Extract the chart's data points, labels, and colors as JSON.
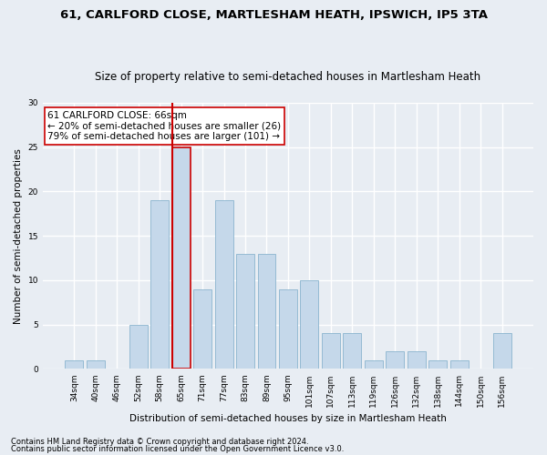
{
  "title": "61, CARLFORD CLOSE, MARTLESHAM HEATH, IPSWICH, IP5 3TA",
  "subtitle": "Size of property relative to semi-detached houses in Martlesham Heath",
  "xlabel": "Distribution of semi-detached houses by size in Martlesham Heath",
  "ylabel": "Number of semi-detached properties",
  "footnote1": "Contains HM Land Registry data © Crown copyright and database right 2024.",
  "footnote2": "Contains public sector information licensed under the Open Government Licence v3.0.",
  "categories": [
    "34sqm",
    "40sqm",
    "46sqm",
    "52sqm",
    "58sqm",
    "65sqm",
    "71sqm",
    "77sqm",
    "83sqm",
    "89sqm",
    "95sqm",
    "101sqm",
    "107sqm",
    "113sqm",
    "119sqm",
    "126sqm",
    "132sqm",
    "138sqm",
    "144sqm",
    "150sqm",
    "156sqm"
  ],
  "values": [
    1,
    1,
    0,
    5,
    19,
    25,
    9,
    19,
    13,
    13,
    9,
    10,
    4,
    4,
    1,
    2,
    2,
    1,
    1,
    0,
    4
  ],
  "highlight_index": 5,
  "bar_color": "#c5d8ea",
  "bar_edge_color": "#8ab4ce",
  "highlight_edge_color": "#cc0000",
  "vline_color": "#cc0000",
  "annotation_text": "61 CARLFORD CLOSE: 66sqm\n← 20% of semi-detached houses are smaller (26)\n79% of semi-detached houses are larger (101) →",
  "annotation_box_color": "#ffffff",
  "annotation_box_edge": "#cc0000",
  "ylim": [
    0,
    30
  ],
  "yticks": [
    0,
    5,
    10,
    15,
    20,
    25,
    30
  ],
  "background_color": "#e8edf3",
  "grid_color": "#ffffff",
  "title_fontsize": 9.5,
  "subtitle_fontsize": 8.5,
  "axis_label_fontsize": 7.5,
  "tick_fontsize": 6.5,
  "annotation_fontsize": 7.5,
  "footnote_fontsize": 6.0
}
